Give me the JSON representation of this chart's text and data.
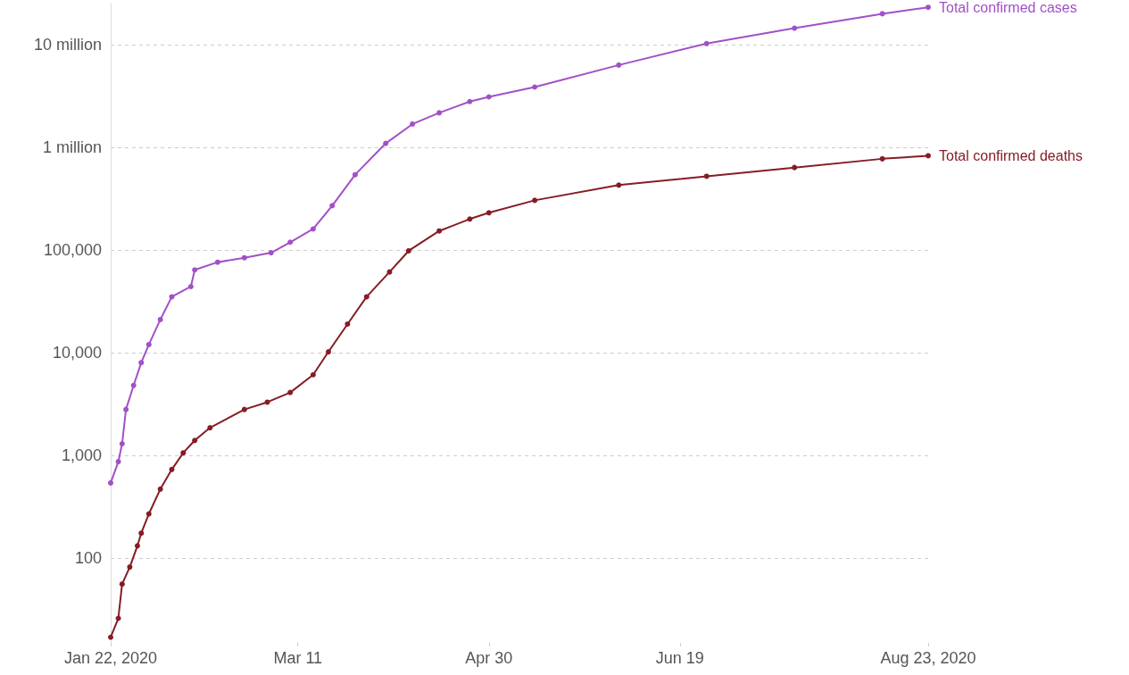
{
  "chart_data": {
    "type": "line",
    "log": "y",
    "grid": "y",
    "legend": false,
    "marker": "circle",
    "line_style": "solid",
    "xlim": [
      "2020-01-22",
      "2020-08-23"
    ],
    "xticks": [
      {
        "value": "2020-01-22",
        "label": "Jan 22, 2020"
      },
      {
        "value": "2020-03-11",
        "label": "Mar 11"
      },
      {
        "value": "2020-04-30",
        "label": "Apr 30"
      },
      {
        "value": "2020-06-19",
        "label": "Jun 19"
      },
      {
        "value": "2020-08-23",
        "label": "Aug 23, 2020"
      }
    ],
    "ylim": [
      15,
      25000000
    ],
    "yticks": [
      100,
      {
        "value": 1000,
        "label": "1,000"
      },
      {
        "value": 10000,
        "label": "10,000"
      },
      {
        "value": 100000,
        "label": "100,000"
      },
      {
        "value": 1000000,
        "label": "1 million"
      },
      {
        "value": 10000000,
        "label": "10 million"
      }
    ],
    "series": [
      {
        "name": "Total confirmed cases",
        "color": "#a250c8",
        "x": [
          "2020-01-22",
          "2020-01-24",
          "2020-01-25",
          "2020-01-26",
          "2020-01-28",
          "2020-01-30",
          "2020-02-01",
          "2020-02-04",
          "2020-02-07",
          "2020-02-12",
          "2020-02-13",
          "2020-02-19",
          "2020-02-26",
          "2020-03-04",
          "2020-03-09",
          "2020-03-15",
          "2020-03-20",
          "2020-03-26",
          "2020-04-03",
          "2020-04-10",
          "2020-04-17",
          "2020-04-25",
          "2020-04-30",
          "2020-05-12",
          "2020-06-03",
          "2020-06-26",
          "2020-07-19",
          "2020-08-11",
          "2020-08-23"
        ],
        "values": [
          540,
          870,
          1300,
          2800,
          4800,
          8000,
          12000,
          21000,
          35000,
          44000,
          64000,
          76000,
          84000,
          94000,
          119000,
          160000,
          270000,
          540000,
          1090000,
          1680000,
          2160000,
          2780000,
          3090000,
          3850000,
          6300000,
          10200000,
          14400000,
          19900000,
          23000000
        ]
      },
      {
        "name": "Total confirmed deaths",
        "color": "#861c24",
        "x": [
          "2020-01-22",
          "2020-01-24",
          "2020-01-25",
          "2020-01-27",
          "2020-01-29",
          "2020-01-30",
          "2020-02-01",
          "2020-02-04",
          "2020-02-07",
          "2020-02-10",
          "2020-02-13",
          "2020-02-17",
          "2020-02-26",
          "2020-03-03",
          "2020-03-09",
          "2020-03-15",
          "2020-03-19",
          "2020-03-24",
          "2020-03-29",
          "2020-04-04",
          "2020-04-09",
          "2020-04-17",
          "2020-04-25",
          "2020-04-30",
          "2020-05-12",
          "2020-06-03",
          "2020-06-26",
          "2020-07-19",
          "2020-08-11",
          "2020-08-23"
        ],
        "values": [
          17,
          26,
          56,
          82,
          132,
          175,
          270,
          470,
          730,
          1060,
          1400,
          1860,
          2800,
          3300,
          4100,
          6100,
          10200,
          19000,
          35000,
          61000,
          98000,
          153000,
          200000,
          230000,
          304000,
          428000,
          521000,
          634000,
          771000,
          826000
        ]
      }
    ]
  }
}
